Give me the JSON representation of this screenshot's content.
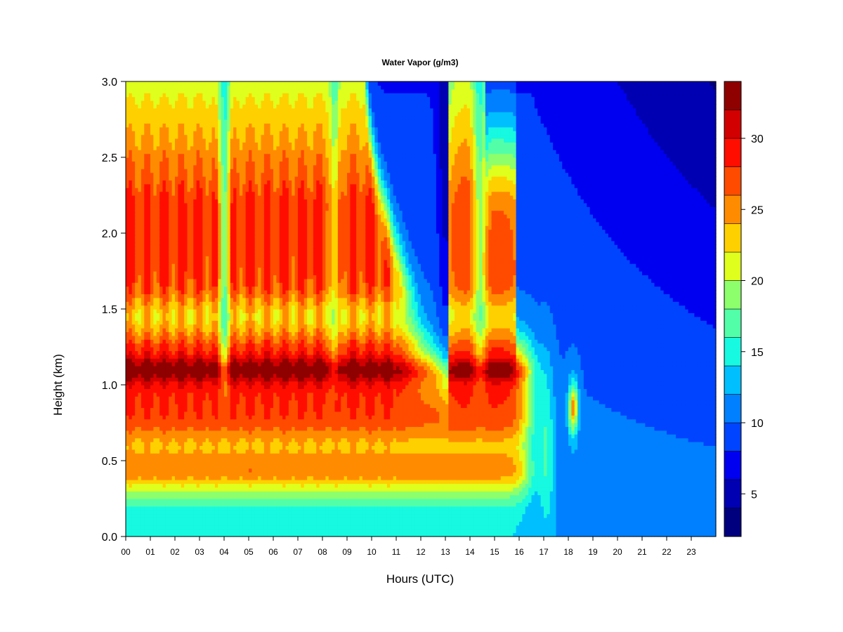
{
  "chart_data": {
    "type": "heatmap",
    "title": "Water Vapor (g/m3)",
    "xlabel": "Hours (UTC)",
    "ylabel": "Height (km)",
    "x_ticks": [
      "00",
      "01",
      "02",
      "03",
      "04",
      "05",
      "06",
      "07",
      "08",
      "09",
      "10",
      "11",
      "12",
      "13",
      "14",
      "15",
      "16",
      "17",
      "18",
      "19",
      "20",
      "21",
      "22",
      "23"
    ],
    "y_ticks": [
      "0.0",
      "0.5",
      "1.0",
      "1.5",
      "2.0",
      "2.5",
      "3.0"
    ],
    "xlim": [
      0,
      24
    ],
    "ylim": [
      0,
      3
    ],
    "colorbar": {
      "levels": [
        2,
        4,
        6,
        8,
        10,
        12,
        14,
        16,
        18,
        20,
        22,
        24,
        26,
        28,
        30,
        32,
        34
      ],
      "tick_labels": [
        "5",
        "10",
        "15",
        "20",
        "25",
        "30"
      ],
      "tick_values": [
        5,
        10,
        15,
        20,
        25,
        30
      ],
      "colors": [
        "#00007F",
        "#0000B2",
        "#0000F0",
        "#0044FF",
        "#0080FF",
        "#00BFFF",
        "#17F9E0",
        "#52FFA8",
        "#8DFF6C",
        "#DFFF1C",
        "#FFD000",
        "#FF8C00",
        "#FF4B00",
        "#FF0E00",
        "#D20000",
        "#8F0000"
      ]
    },
    "description_series": [
      {
        "name": "humid_layer_0_to_16h",
        "hours": [
          0,
          16.4
        ],
        "height_km": [
          0.4,
          3.0
        ],
        "peak_value": 30
      },
      {
        "name": "dry_after_17h",
        "hours": [
          17,
          24
        ],
        "height_km": [
          0,
          3
        ],
        "value": 9
      }
    ],
    "grid": false,
    "legend": "colorbar-right"
  }
}
